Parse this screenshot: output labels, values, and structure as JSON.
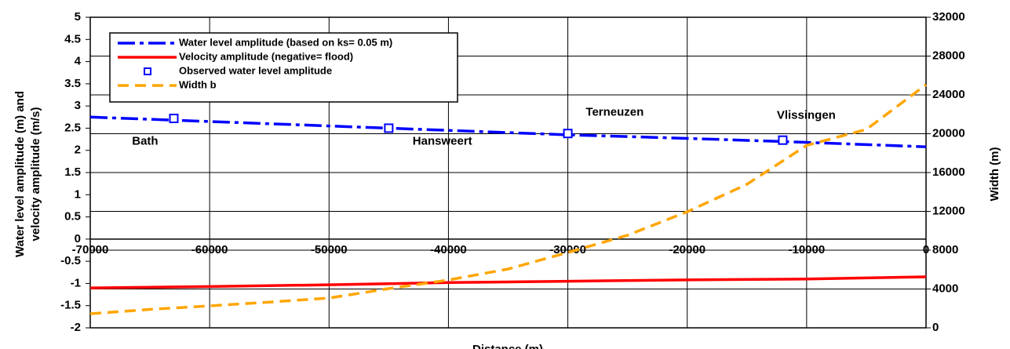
{
  "chart_data": {
    "type": "line",
    "y_label_lines": [
      "Water level amplitude (m) and",
      "velocity amplitude (m/s)"
    ],
    "y2_label": "Width (m)",
    "x_label": "Distance (m)",
    "xlim": [
      -70000,
      0
    ],
    "xticks": [
      -70000,
      -60000,
      -50000,
      -40000,
      -30000,
      -20000,
      -10000,
      0
    ],
    "ylim": [
      -2,
      5
    ],
    "yticks": [
      -2,
      -1.5,
      -1,
      -0.5,
      0,
      0.5,
      1,
      1.5,
      2,
      2.5,
      3,
      3.5,
      4,
      4.5,
      5
    ],
    "y2lim": [
      0,
      32000
    ],
    "y2ticks": [
      0,
      4000,
      8000,
      12000,
      16000,
      20000,
      24000,
      28000,
      32000
    ],
    "grid": true,
    "series": [
      {
        "name": "Water level amplitude (based on ks= 0.05 m)",
        "color": "#0000ff",
        "style": "dashdot",
        "x": [
          -70000,
          -60000,
          -50000,
          -40000,
          -30000,
          -20000,
          -10000,
          0
        ],
        "values": [
          2.75,
          2.65,
          2.55,
          2.45,
          2.35,
          2.27,
          2.18,
          2.08
        ]
      },
      {
        "name": "Velocity amplitude (negative= flood)",
        "color": "#ff0000",
        "style": "solid",
        "x": [
          -70000,
          -60000,
          -50000,
          -40000,
          -30000,
          -20000,
          -10000,
          0
        ],
        "values": [
          -1.1,
          -1.07,
          -1.03,
          -0.98,
          -0.95,
          -0.92,
          -0.9,
          -0.85
        ]
      },
      {
        "name": "Observed water level amplitude",
        "color": "#0000ff",
        "style": "marker",
        "x": [
          -63000,
          -45000,
          -30000,
          -12000
        ],
        "values": [
          2.72,
          2.5,
          2.38,
          2.23
        ]
      },
      {
        "name": "Width b",
        "color": "#ffa500",
        "style": "dash",
        "axis": "y2",
        "x": [
          -70000,
          -65000,
          -60000,
          -55000,
          -50000,
          -45000,
          -40000,
          -35000,
          -30000,
          -25000,
          -20000,
          -15000,
          -10000,
          -5000,
          0
        ],
        "values": [
          1450,
          1900,
          2260,
          2650,
          3070,
          4040,
          4930,
          6060,
          7760,
          9540,
          11960,
          14790,
          18800,
          20440,
          25050
        ]
      }
    ],
    "annotations": [
      {
        "text": "Bath",
        "x": -66500,
        "y": 2.2
      },
      {
        "text": "Hansweert",
        "x": -43000,
        "y": 2.2
      },
      {
        "text": "Terneuzen",
        "x": -28500,
        "y": 2.85
      },
      {
        "text": "Vlissingen",
        "x": -12500,
        "y": 2.78
      }
    ]
  }
}
